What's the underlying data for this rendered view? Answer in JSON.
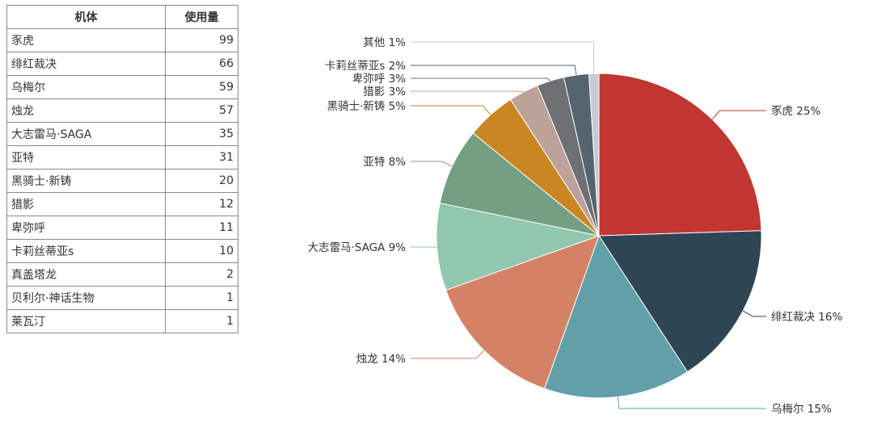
{
  "table": {
    "headers": [
      "机体",
      "使用量"
    ],
    "rows": [
      [
        "豕虎",
        "99"
      ],
      [
        "绯红裁决",
        "66"
      ],
      [
        "乌梅尔",
        "59"
      ],
      [
        "烛龙",
        "57"
      ],
      [
        "大志雷马·SAGA",
        "35"
      ],
      [
        "亚特",
        "31"
      ],
      [
        "黑骑士·新铸",
        "20"
      ],
      [
        "猎影",
        "12"
      ],
      [
        "卑弥呼",
        "11"
      ],
      [
        "卡莉丝蒂亚s",
        "10"
      ],
      [
        "真盖塔龙",
        "2"
      ],
      [
        "贝利尔·神话生物",
        "1"
      ],
      [
        "莱瓦汀",
        "1"
      ]
    ]
  },
  "chart_data": {
    "type": "pie",
    "slices": [
      {
        "name": "豕虎",
        "value": 99,
        "label": "豕虎 25%",
        "color": "#c23531"
      },
      {
        "name": "绯红裁决",
        "value": 66,
        "label": "绯红裁决 16%",
        "color": "#2f4554"
      },
      {
        "name": "乌梅尔",
        "value": 59,
        "label": "乌梅尔 15%",
        "color": "#61a0a8"
      },
      {
        "name": "烛龙",
        "value": 57,
        "label": "烛龙 14%",
        "color": "#d48265"
      },
      {
        "name": "大志雷马·SAGA",
        "value": 35,
        "label": "大志雷马·SAGA 9%",
        "color": "#91c7ae"
      },
      {
        "name": "亚特",
        "value": 31,
        "label": "亚特 8%",
        "color": "#749f83"
      },
      {
        "name": "黑骑士·新铸",
        "value": 20,
        "label": "黑骑士·新铸 5%",
        "color": "#ca8622"
      },
      {
        "name": "猎影",
        "value": 12,
        "label": "猎影 3%",
        "color": "#bda29a"
      },
      {
        "name": "卑弥呼",
        "value": 11,
        "label": "卑弥呼 3%",
        "color": "#6e7074"
      },
      {
        "name": "卡莉丝蒂亚s",
        "value": 10,
        "label": "卡莉丝蒂亚s 2%",
        "color": "#546570"
      },
      {
        "name": "其他",
        "value": 4,
        "label": "其他 1%",
        "color": "#c4ccd3"
      }
    ]
  }
}
